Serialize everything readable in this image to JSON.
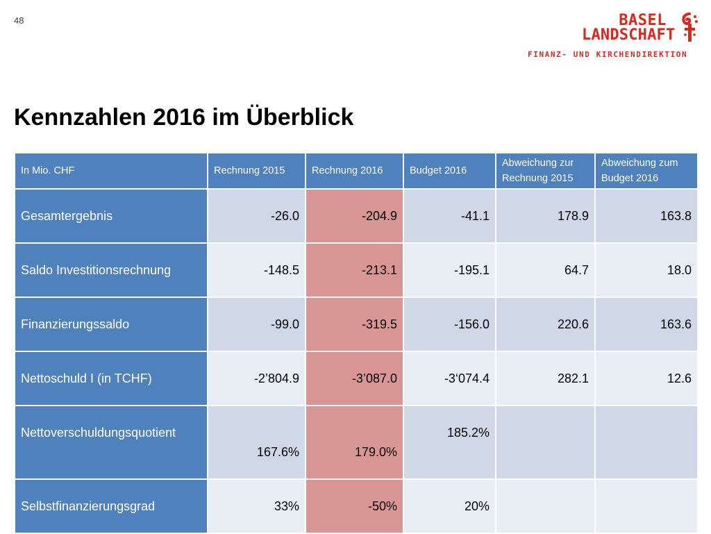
{
  "page_number": "48",
  "logo": {
    "line1": "BASEL",
    "line2": "LANDSCHAFT",
    "subtitle": "FINANZ- UND KIRCHENDIREKTION",
    "brand_color": "#d42a20"
  },
  "title": "Kennzahlen 2016 im Überblick",
  "table": {
    "headers": [
      "In Mio. CHF",
      "Rechnung 2015",
      "Rechnung 2016",
      "Budget 2016",
      "Abweichung zur Rechnung 2015",
      "Abweichung zum Budget 2016"
    ],
    "rows": [
      {
        "label": "Gesamtergebnis",
        "values": [
          "-26.0",
          "-204.9",
          "-41.1",
          "178.9",
          "163.8"
        ]
      },
      {
        "label": "Saldo Investitionsrechnung",
        "values": [
          "-148.5",
          "-213.1",
          "-195.1",
          "64.7",
          "18.0"
        ]
      },
      {
        "label": "Finanzierungssaldo",
        "values": [
          "-99.0",
          "-319.5",
          "-156.0",
          "220.6",
          "163.6"
        ]
      },
      {
        "label": "Nettoschuld I (in TCHF)",
        "values": [
          "-2’804.9",
          "-3’087.0",
          "-3‘074.4",
          "282.1",
          "12.6"
        ]
      },
      {
        "label": "Nettoverschuldungsquotient",
        "values": [
          "167.6%",
          "179.0%",
          "185.2%",
          "",
          ""
        ]
      },
      {
        "label": "Selbstfinanzierungsgrad",
        "values": [
          "33%",
          "-50%",
          "20%",
          "",
          ""
        ]
      }
    ],
    "colors": {
      "header": "#4f81bd",
      "row_odd": "#d0d8e8",
      "row_even": "#e9edf4",
      "highlight": "#da9694"
    }
  }
}
